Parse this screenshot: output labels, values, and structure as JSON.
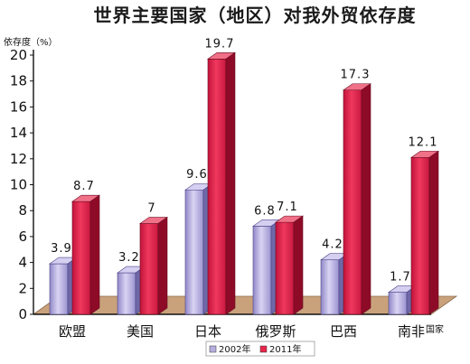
{
  "chart_data": {
    "type": "bar",
    "title": "世界主要国家（地区）对我外贸依存度",
    "ylabel": "依存度（%）",
    "xlabel": "国家",
    "categories": [
      "欧盟",
      "美国",
      "日本",
      "俄罗斯",
      "巴西",
      "南非"
    ],
    "series": [
      {
        "name": "2002年",
        "values": [
          3.9,
          3.2,
          9.6,
          6.8,
          4.2,
          1.7
        ],
        "labels": [
          "3.9",
          "3.2",
          "9.6",
          "6.8",
          "4.2",
          "1.7"
        ]
      },
      {
        "name": "2011年",
        "values": [
          8.7,
          7,
          19.7,
          7.1,
          17.3,
          12.1
        ],
        "labels": [
          "8.7",
          "7",
          "19.7",
          "7.1",
          "17.3",
          "12.1"
        ]
      }
    ],
    "ylim": [
      0,
      20
    ],
    "yticks": [
      0,
      2,
      4,
      6,
      8,
      10,
      12,
      14,
      16,
      18,
      20
    ],
    "legend_position": "bottom",
    "colors": {
      "2002年": "#b7aee0",
      "2011年": "#e8254a",
      "floor": "#c9a27c",
      "axis": "#111111"
    }
  }
}
